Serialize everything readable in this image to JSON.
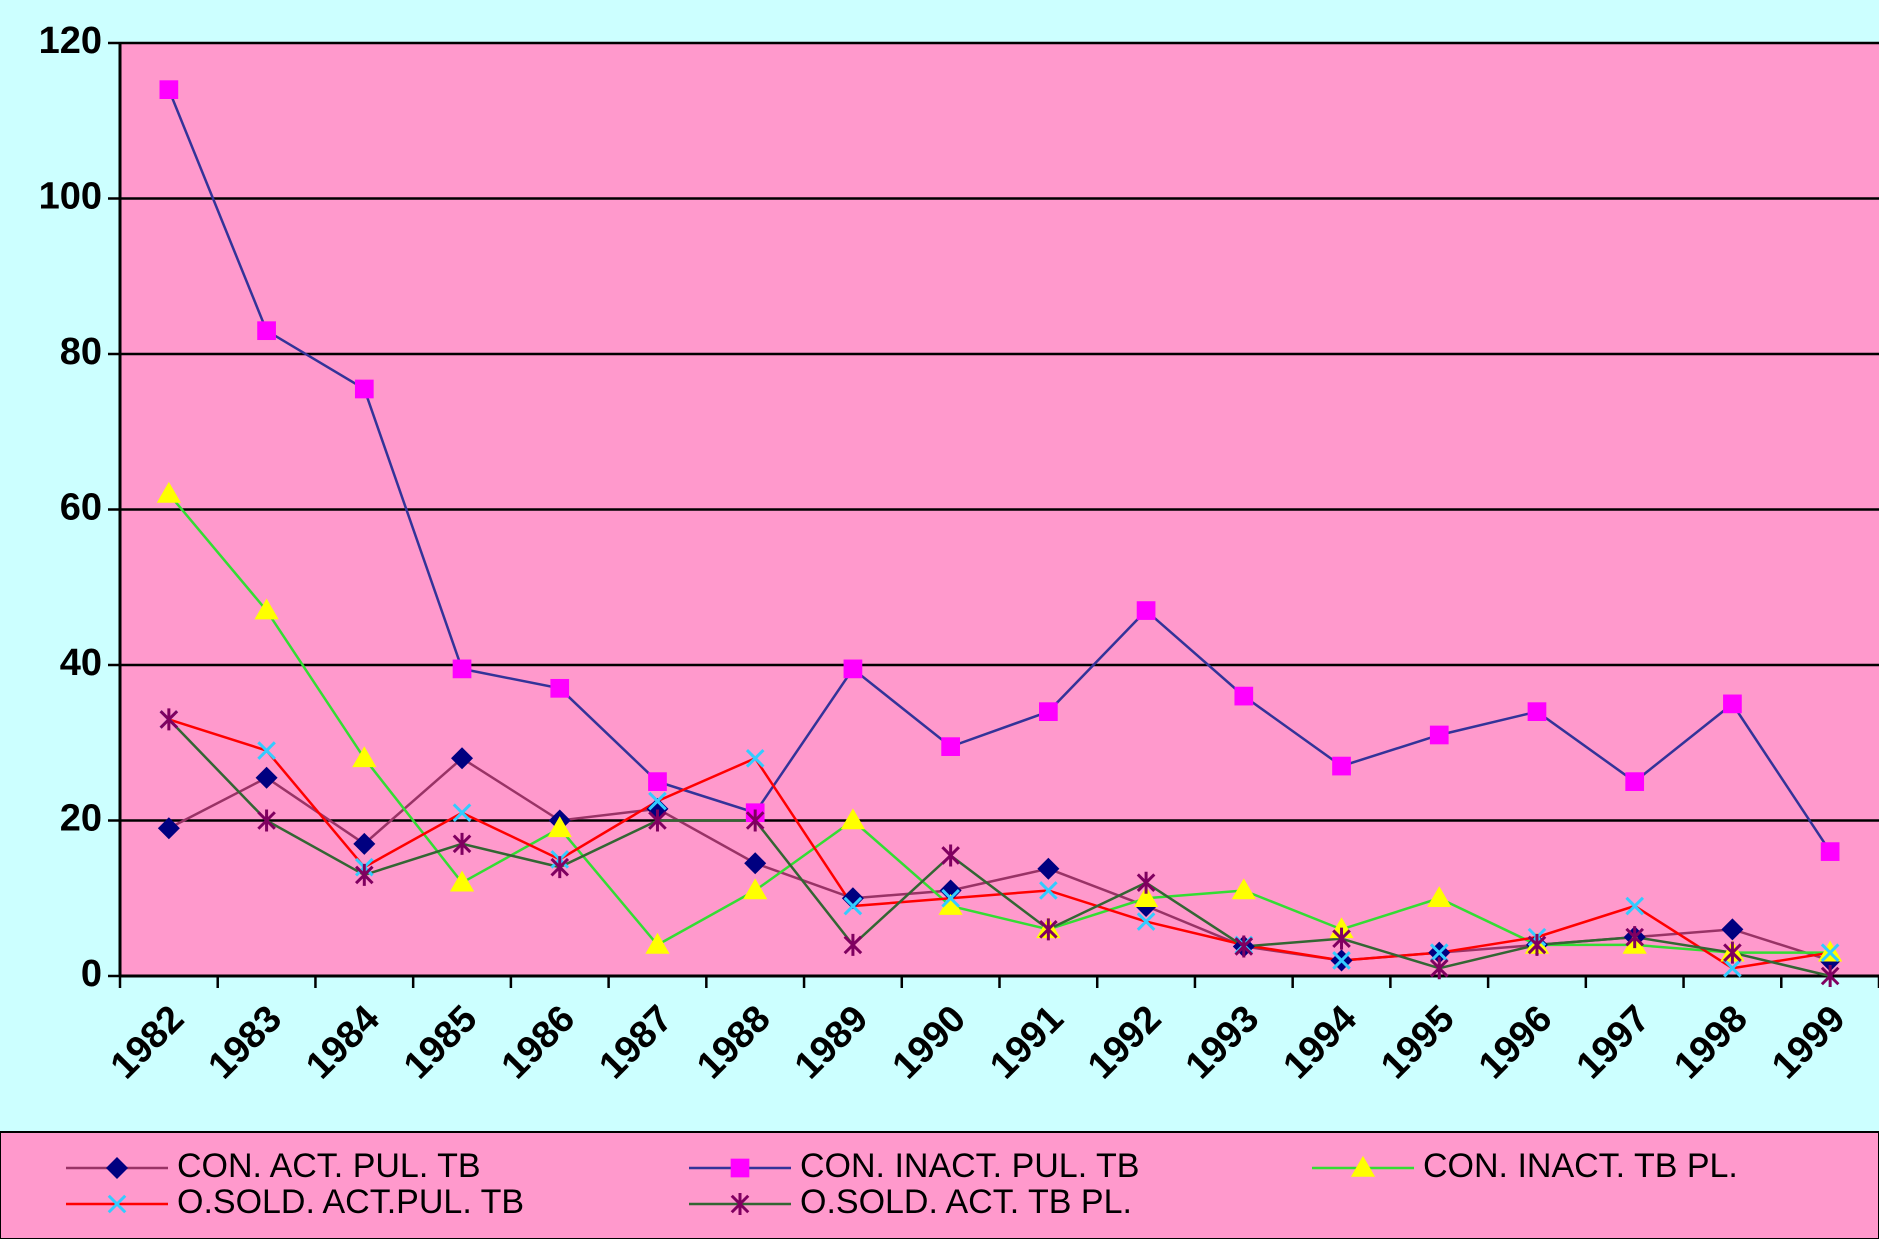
{
  "chart_data": {
    "type": "line",
    "categories": [
      "1982",
      "1983",
      "1984",
      "1985",
      "1986",
      "1987",
      "1988",
      "1989",
      "1990",
      "1991",
      "1992",
      "1993",
      "1994",
      "1995",
      "1996",
      "1997",
      "1998",
      "1999"
    ],
    "series": [
      {
        "name": "CON. ACT. PUL. TB",
        "color": "#993366",
        "marker": "diamond",
        "marker_color": "#000080",
        "values": [
          19,
          25.5,
          17,
          28,
          20,
          21.5,
          14.5,
          10,
          11,
          13.8,
          9,
          3.8,
          2,
          3,
          4,
          5,
          6,
          2
        ]
      },
      {
        "name": "CON. INACT. PUL. TB",
        "color": "#333399",
        "marker": "square",
        "marker_color": "#ff00ff",
        "values": [
          114,
          83,
          75.5,
          39.5,
          37,
          25,
          21,
          39.5,
          29.5,
          34,
          47,
          36,
          27,
          31,
          34,
          25,
          35,
          16
        ]
      },
      {
        "name": "CON. INACT. TB PL.",
        "color": "#33dd33",
        "marker": "triangle",
        "marker_color": "#ffff00",
        "values": [
          62,
          47,
          28,
          12,
          19,
          4,
          11,
          20,
          9,
          6,
          10,
          11,
          6,
          10,
          4,
          4,
          3,
          3
        ]
      },
      {
        "name": "O.SOLD. ACT.PUL. TB",
        "color": "#ff0000",
        "marker": "x",
        "marker_color": "#33ccff",
        "values": [
          33,
          29,
          14,
          21,
          15,
          22.5,
          28,
          9,
          10,
          11,
          7,
          4,
          2,
          3,
          5,
          9,
          1,
          3
        ]
      },
      {
        "name": "O.SOLD. ACT. TB PL.",
        "color": "#336633",
        "marker": "star",
        "marker_color": "#800060",
        "values": [
          33,
          20,
          13,
          17,
          14,
          20,
          20,
          4,
          15.5,
          6,
          12,
          3.8,
          4.8,
          1,
          4,
          5,
          3,
          0
        ]
      }
    ],
    "ylim": [
      0,
      120
    ],
    "yticks": [
      0,
      20,
      40,
      60,
      80,
      100,
      120
    ],
    "grid": true,
    "background": "#ccffff",
    "plot_background": "#ff99cc",
    "legend": "bottom"
  }
}
